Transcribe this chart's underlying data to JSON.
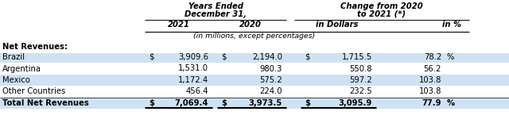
{
  "title_left_line1": "Years Ended",
  "title_left_line2": "December 31,",
  "title_right_line1": "Change from 2020",
  "title_right_line2": "to 2021 (*)",
  "col_headers": [
    "2021",
    "2020",
    "in Dollars",
    "in %"
  ],
  "sub_note": "(in millions, except percentages)",
  "section_label": "Net Revenues:",
  "rows": [
    {
      "label": "Brazil",
      "dollar1": true,
      "v2021": "3,909.6",
      "dollar2": true,
      "v2020": "2,194.0",
      "dollar3": true,
      "vdollar": "1,715.5",
      "vpct": "78.2",
      "pct_sign": true,
      "bold": false
    },
    {
      "label": "Argentina",
      "dollar1": false,
      "v2021": "1,531.0",
      "dollar2": false,
      "v2020": "980.3",
      "dollar3": false,
      "vdollar": "550.8",
      "vpct": "56.2",
      "pct_sign": false,
      "bold": false
    },
    {
      "label": "Mexico",
      "dollar1": false,
      "v2021": "1,172.4",
      "dollar2": false,
      "v2020": "575.2",
      "dollar3": false,
      "vdollar": "597.2",
      "vpct": "103.8",
      "pct_sign": false,
      "bold": false
    },
    {
      "label": "Other Countries",
      "dollar1": false,
      "v2021": "456.4",
      "dollar2": false,
      "v2020": "224.0",
      "dollar3": false,
      "vdollar": "232.5",
      "vpct": "103.8",
      "pct_sign": false,
      "bold": false
    },
    {
      "label": "Total Net Revenues",
      "dollar1": true,
      "v2021": "7,069.4",
      "dollar2": true,
      "v2020": "3,973.5",
      "dollar3": true,
      "vdollar": "3,095.9",
      "vpct": "77.9",
      "pct_sign": true,
      "bold": true
    }
  ],
  "bg_light": "#cfe2f3",
  "bg_white": "#ffffff",
  "text_color": "#000000",
  "line_color": "#000000",
  "font_size": 7.2,
  "header_font_size": 7.2,
  "fig_width": 6.4,
  "fig_height": 1.55,
  "dpi": 100
}
